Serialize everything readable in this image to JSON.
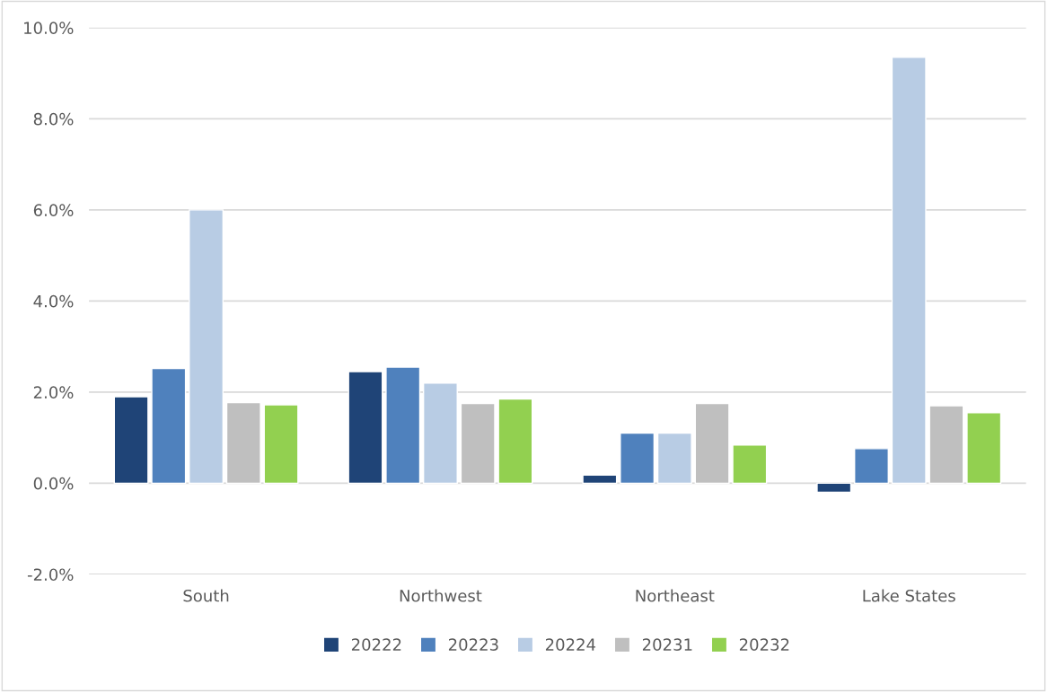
{
  "chart_data": {
    "type": "bar",
    "categories": [
      "South",
      "Northwest",
      "Northeast",
      "Lake States"
    ],
    "series": [
      {
        "name": "20222",
        "color": "#1f4477",
        "values": [
          1.9,
          2.45,
          0.18,
          -0.2
        ]
      },
      {
        "name": "20223",
        "color": "#4f81bd",
        "values": [
          2.52,
          2.55,
          1.1,
          0.76
        ]
      },
      {
        "name": "20224",
        "color": "#b8cce4",
        "values": [
          6.0,
          2.2,
          1.1,
          9.35
        ]
      },
      {
        "name": "20231",
        "color": "#bfbfbf",
        "values": [
          1.77,
          1.75,
          1.75,
          1.7
        ]
      },
      {
        "name": "20232",
        "color": "#92d050",
        "values": [
          1.72,
          1.85,
          0.84,
          1.55
        ]
      }
    ],
    "ylim": [
      -2.0,
      10.0
    ],
    "yticks": [
      {
        "value": -2.0,
        "label": "-2.0%"
      },
      {
        "value": 0.0,
        "label": "0.0%"
      },
      {
        "value": 2.0,
        "label": "2.0%"
      },
      {
        "value": 4.0,
        "label": "4.0%"
      },
      {
        "value": 6.0,
        "label": "6.0%"
      },
      {
        "value": 8.0,
        "label": "8.0%"
      },
      {
        "value": 10.0,
        "label": "10.0%"
      }
    ],
    "grid": "y",
    "legend": "bottom"
  }
}
